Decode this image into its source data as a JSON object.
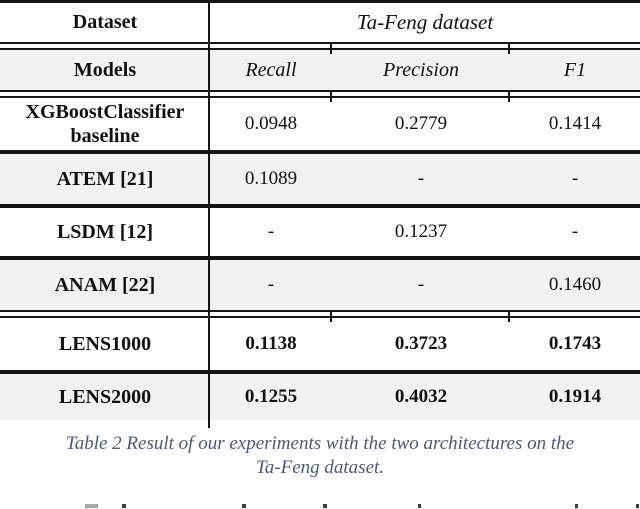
{
  "table": {
    "header": {
      "dataset_label": "Dataset",
      "dataset_group": "Ta-Feng dataset"
    },
    "columns": {
      "models_label": "Models",
      "metrics": [
        "Recall",
        "Precision",
        "F1"
      ]
    },
    "rows": [
      {
        "model_line1": "XGBoostClassifier",
        "model_line2": "baseline",
        "recall": "0.0948",
        "precision": "0.2779",
        "f1": "0.1414"
      },
      {
        "model": "ATEM [21]",
        "recall": "0.1089",
        "precision": "-",
        "f1": "-"
      },
      {
        "model": "LSDM [12]",
        "recall": "-",
        "precision": "0.1237",
        "f1": "-"
      },
      {
        "model": "ANAM [22]",
        "recall": "-",
        "precision": "-",
        "f1": "0.1460"
      },
      {
        "model": "LENS1000",
        "recall": "0.1138",
        "precision": "0.3723",
        "f1": "0.1743"
      },
      {
        "model": "LENS2000",
        "recall": "0.1255",
        "precision": "0.4032",
        "f1": "0.1914"
      }
    ]
  },
  "caption": {
    "line1": "Table 2 Result of our experiments with the two architectures on the",
    "line2": "Ta-Feng dataset."
  },
  "colors": {
    "stripe": "#f2f2f2",
    "rule": "#141414",
    "caption_text": "#4b5a73"
  }
}
